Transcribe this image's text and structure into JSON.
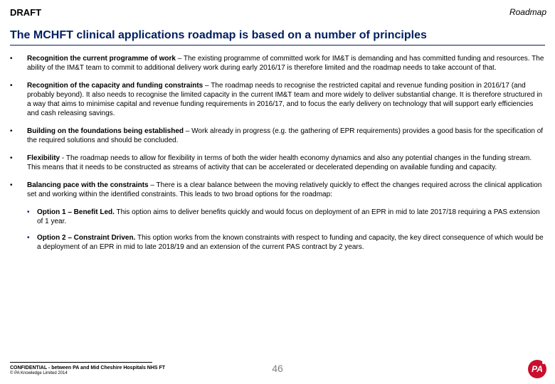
{
  "header": {
    "draft": "DRAFT",
    "section": "Roadmap"
  },
  "title": "The MCHFT clinical applications roadmap is based on a number of principles",
  "principles": [
    {
      "heading": "Recognition the current programme of work",
      "sep": " – ",
      "text": "The existing programme of committed work for IM&T is demanding and has committed funding and resources.  The ability of the IM&T team to commit to additional delivery work during early 2016/17 is therefore limited and the roadmap needs to take account of that."
    },
    {
      "heading": "Recognition of the capacity and funding constraints",
      "sep": " – ",
      "text": "The roadmap needs to recognise the restricted capital and revenue funding position in 2016/17 (and probably beyond).  It also needs to recognise the limited capacity in the current IM&T team and more widely to deliver substantial change. It is therefore structured in a way that aims to minimise capital and revenue funding requirements in 2016/17, and to focus the early delivery on technology that will support early efficiencies and cash releasing savings."
    },
    {
      "heading": "Building on the foundations being established",
      "sep": "  – ",
      "text": "Work already in progress (e.g. the gathering of EPR requirements) provides a good basis for the specification of the required solutions and should be concluded."
    },
    {
      "heading": "Flexibility",
      "sep": " -  ",
      "text": "The roadmap needs to allow for flexibility in terms of both the wider health economy dynamics and also any potential changes in the funding stream. This means that it needs to be constructed as streams of activity that can be accelerated or decelerated depending on available funding and capacity."
    },
    {
      "heading": "Balancing pace with the constraints",
      "sep": " – ",
      "text": "There is a clear balance between the moving relatively quickly to effect the changes required across the clinical application set and working within the identified constraints.  This leads to two broad options for the roadmap:"
    }
  ],
  "options": [
    {
      "heading": "Option 1 – Benefit Led.",
      "text": "  This option aims to deliver benefits quickly and would focus on deployment of an EPR in mid to late 2017/18 requiring a PAS extension of 1 year."
    },
    {
      "heading": "Option 2 – Constraint Driven.",
      "text": "  This option works from the known constraints with respect to funding and capacity, the key direct consequence of which would be a deployment of an EPR in mid to late 2018/19 and an extension of the current PAS contract by 2 years."
    }
  ],
  "footer": {
    "confidential": "CONFIDENTIAL - between PA and Mid Cheshire Hospitals NHS FT",
    "copyright": "© PA Knowledge Limited 2014",
    "page": "46",
    "logo": "PA"
  },
  "colors": {
    "title": "#002060",
    "brand": "#c8102e",
    "pagenum": "#808080"
  }
}
